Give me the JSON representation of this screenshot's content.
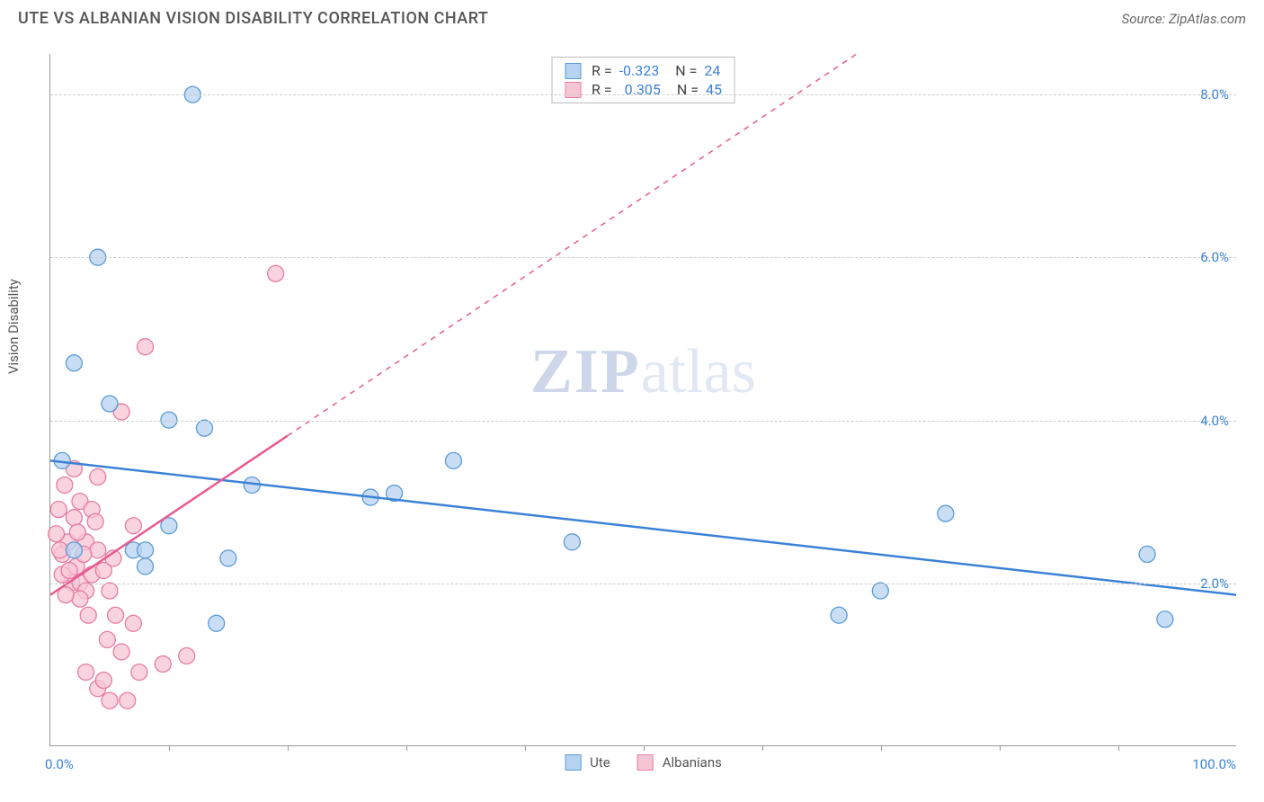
{
  "title": "UTE VS ALBANIAN VISION DISABILITY CORRELATION CHART",
  "source": "Source: ZipAtlas.com",
  "y_axis_label": "Vision Disability",
  "watermark_a": "ZIP",
  "watermark_b": "atlas",
  "chart": {
    "type": "scatter",
    "xlim": [
      0,
      100
    ],
    "ylim": [
      0,
      8.5
    ],
    "x_ticks_major_label": {
      "left": "0.0%",
      "right": "100.0%"
    },
    "x_minor_ticks": [
      10,
      20,
      30,
      40,
      50,
      60,
      70,
      80,
      90
    ],
    "y_ticks": [
      2.0,
      4.0,
      6.0,
      8.0
    ],
    "y_tick_labels": [
      "2.0%",
      "4.0%",
      "6.0%",
      "8.0%"
    ],
    "grid_color": "#cccccc",
    "axis_color": "#999999",
    "background_color": "#ffffff",
    "marker_radius": 9,
    "marker_stroke_width": 1.3,
    "trend_line_width": 2.5,
    "trend_dash": "6,6",
    "series": [
      {
        "name": "Ute",
        "fill": "#b7d3f2",
        "stroke": "#5b9bd5",
        "line_color": "#3b82d6",
        "R": "-0.323",
        "N": "24",
        "trend": {
          "x1": 0,
          "y1": 3.5,
          "x2": 100,
          "y2": 1.85,
          "solid_to_x": 100
        },
        "points": [
          [
            1.0,
            3.5
          ],
          [
            2.0,
            4.7
          ],
          [
            4.0,
            6.0
          ],
          [
            12.0,
            8.0
          ],
          [
            5.0,
            4.2
          ],
          [
            10.0,
            4.0
          ],
          [
            13.0,
            3.9
          ],
          [
            2.0,
            2.4
          ],
          [
            7.0,
            2.4
          ],
          [
            8.0,
            2.2
          ],
          [
            15.0,
            2.3
          ],
          [
            10.0,
            2.7
          ],
          [
            8.0,
            2.4
          ],
          [
            34.0,
            3.5
          ],
          [
            17.0,
            3.2
          ],
          [
            29.0,
            3.1
          ],
          [
            14.0,
            1.5
          ],
          [
            44.0,
            2.5
          ],
          [
            66.5,
            1.6
          ],
          [
            70.0,
            1.9
          ],
          [
            75.5,
            2.85
          ],
          [
            92.5,
            2.35
          ],
          [
            94.0,
            1.55
          ],
          [
            27.0,
            3.05
          ]
        ]
      },
      {
        "name": "Albanians",
        "fill": "#f7c6d4",
        "stroke": "#e87ba3",
        "line_color": "#e85a8f",
        "R": "0.305",
        "N": "45",
        "trend": {
          "x1": 0,
          "y1": 1.85,
          "x2": 68,
          "y2": 8.5,
          "solid_to_x": 20
        },
        "points": [
          [
            1.0,
            2.35
          ],
          [
            1.5,
            2.5
          ],
          [
            2.0,
            2.8
          ],
          [
            2.5,
            3.0
          ],
          [
            1.8,
            2.0
          ],
          [
            2.2,
            2.2
          ],
          [
            3.0,
            2.5
          ],
          [
            3.5,
            2.9
          ],
          [
            4.0,
            3.3
          ],
          [
            1.0,
            2.1
          ],
          [
            0.8,
            2.4
          ],
          [
            0.5,
            2.6
          ],
          [
            1.2,
            3.2
          ],
          [
            2.0,
            3.4
          ],
          [
            2.5,
            2.0
          ],
          [
            3.0,
            1.9
          ],
          [
            3.5,
            2.1
          ],
          [
            4.0,
            2.4
          ],
          [
            4.5,
            2.15
          ],
          [
            5.0,
            1.9
          ],
          [
            5.5,
            1.6
          ],
          [
            6.0,
            1.15
          ],
          [
            7.0,
            1.5
          ],
          [
            8.0,
            4.9
          ],
          [
            19.0,
            5.8
          ],
          [
            3.0,
            0.9
          ],
          [
            4.0,
            0.7
          ],
          [
            5.0,
            0.55
          ],
          [
            4.5,
            0.8
          ],
          [
            6.5,
            0.55
          ],
          [
            7.5,
            0.9
          ],
          [
            9.5,
            1.0
          ],
          [
            11.5,
            1.1
          ],
          [
            6.0,
            4.1
          ],
          [
            7.0,
            2.7
          ],
          [
            2.5,
            1.8
          ],
          [
            3.2,
            1.6
          ],
          [
            4.8,
            1.3
          ],
          [
            1.3,
            1.85
          ],
          [
            0.7,
            2.9
          ],
          [
            2.8,
            2.35
          ],
          [
            3.8,
            2.75
          ],
          [
            1.6,
            2.15
          ],
          [
            2.3,
            2.62
          ],
          [
            5.3,
            2.3
          ]
        ]
      }
    ]
  }
}
